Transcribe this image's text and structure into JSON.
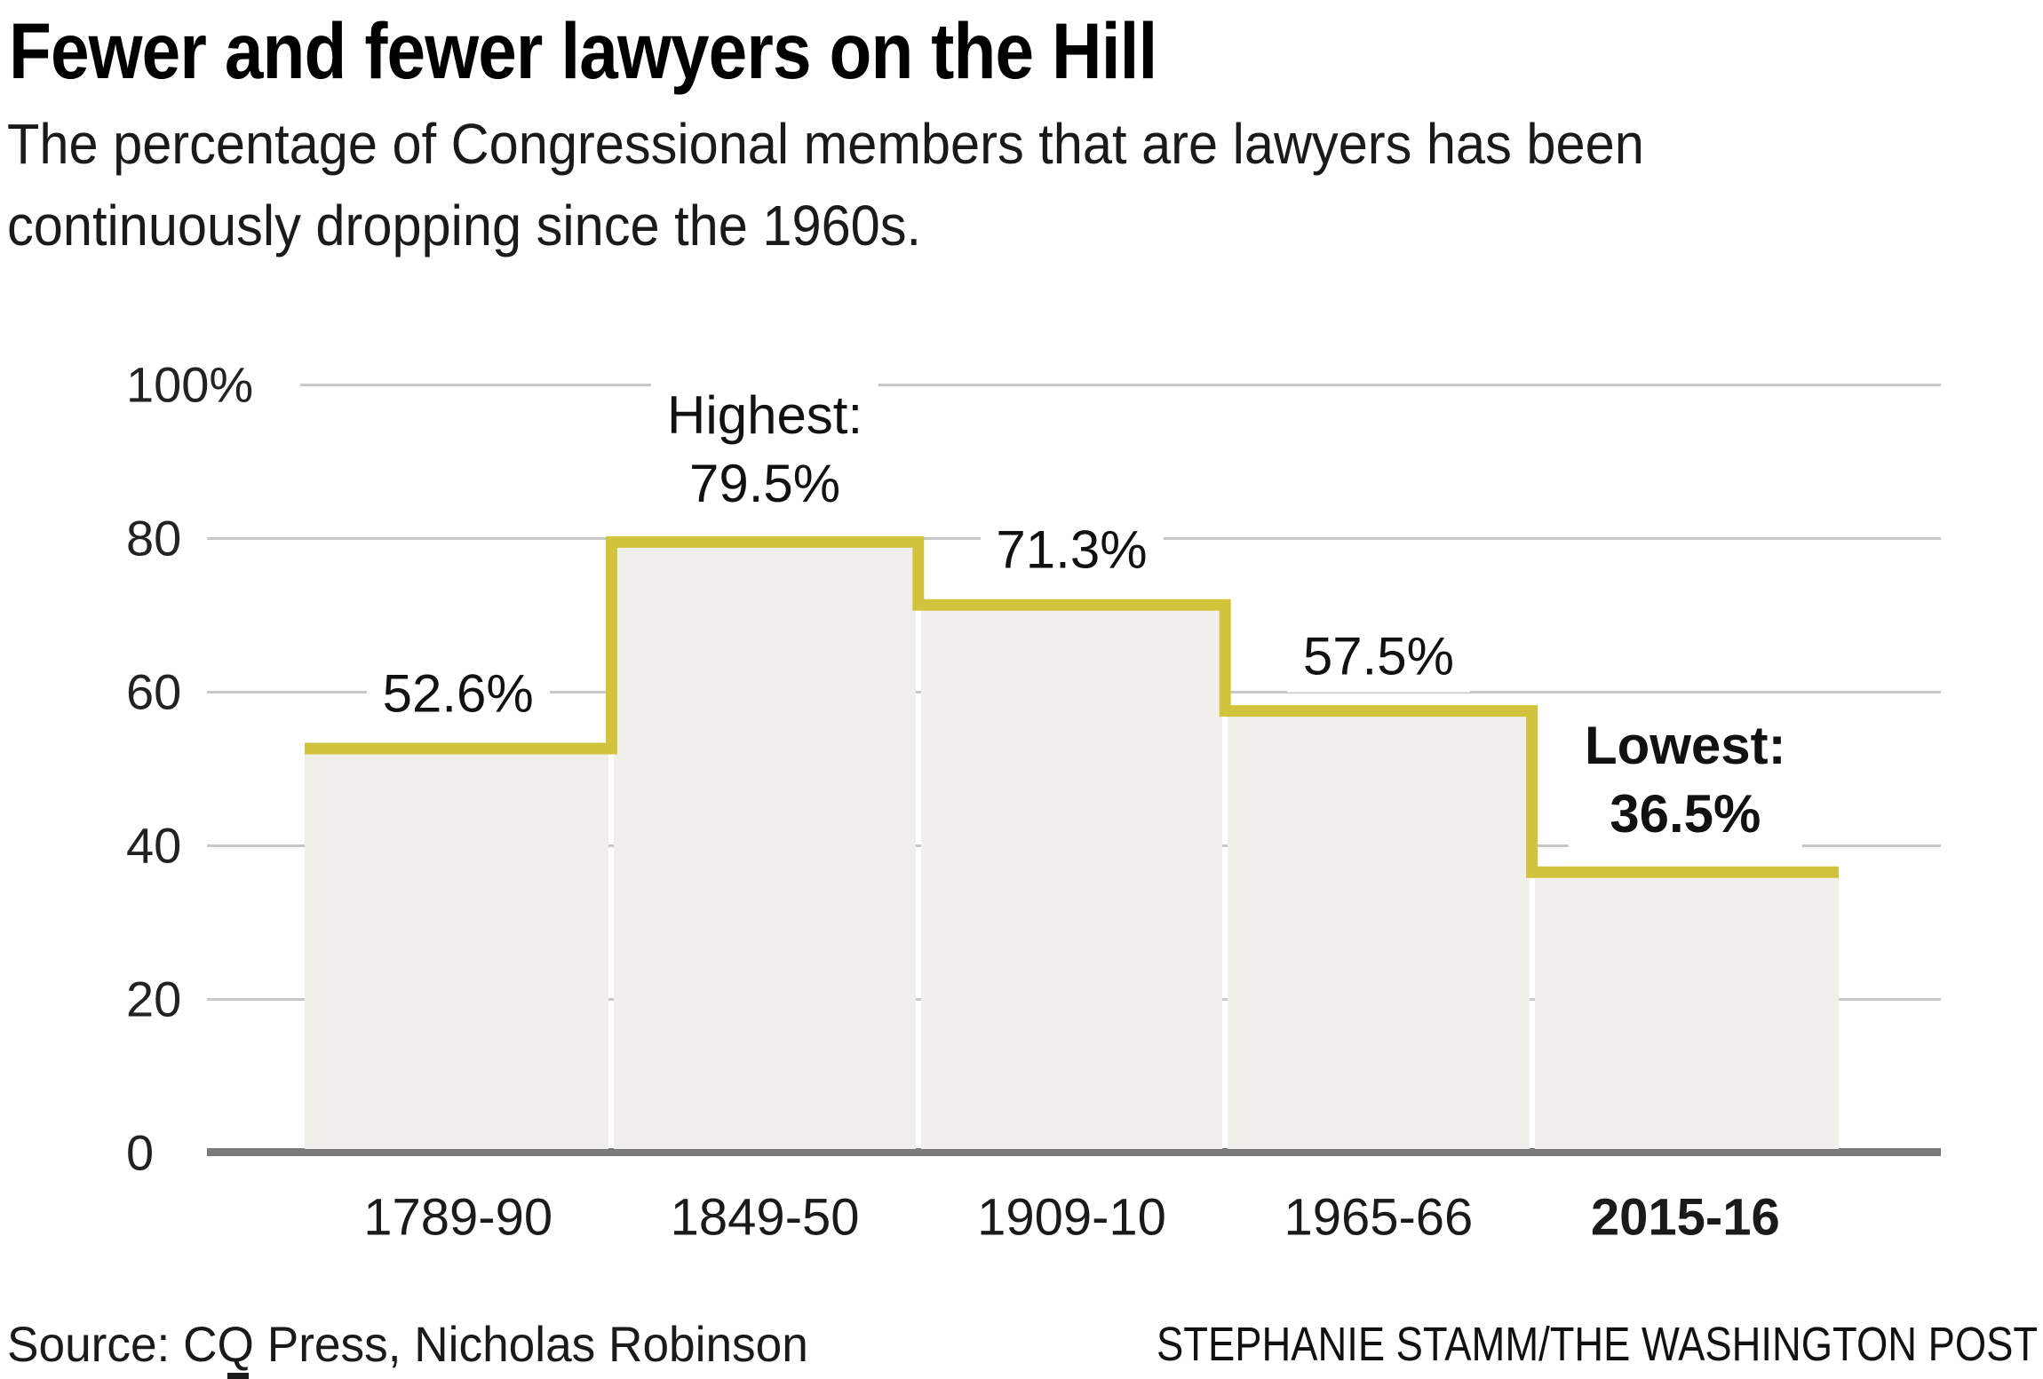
{
  "header": {
    "title": "Fewer and fewer lawyers on the Hill",
    "subtitle_line1": "The percentage of Congressional members that are lawyers has been",
    "subtitle_line2": "continuously dropping since the 1960s."
  },
  "chart_data": {
    "type": "bar",
    "title": "Fewer and fewer lawyers on the Hill",
    "subtitle": "The percentage of Congressional members that are lawyers has been continuously dropping since the 1960s.",
    "categories": [
      "1789-90",
      "1849-50",
      "1909-10",
      "1965-66",
      "2015-16"
    ],
    "values": [
      52.6,
      79.5,
      71.3,
      57.5,
      36.5
    ],
    "xlabel": "",
    "ylabel": "",
    "ylim": [
      0,
      100
    ],
    "grid": true,
    "legend_position": "none",
    "y_ticks": [
      {
        "label": "100%",
        "value": 100
      },
      {
        "label": "80",
        "value": 80
      },
      {
        "label": "60",
        "value": 60
      },
      {
        "label": "40",
        "value": 40
      },
      {
        "label": "20",
        "value": 20
      },
      {
        "label": "0",
        "value": 0
      }
    ],
    "bar_annotations": [
      {
        "lines": [
          "52.6%"
        ],
        "bold": false
      },
      {
        "lines": [
          "Highest:",
          "79.5%"
        ],
        "bold": false
      },
      {
        "lines": [
          "71.3%"
        ],
        "bold": false
      },
      {
        "lines": [
          "57.5%"
        ],
        "bold": false
      },
      {
        "lines": [
          "Lowest:",
          "36.5%"
        ],
        "bold": true
      }
    ],
    "bold_categories": [
      false,
      false,
      false,
      false,
      true
    ],
    "colors": {
      "step_line": "#d2c33d",
      "bar_fill": "#f0efec",
      "gridline": "#c8c8c8",
      "axis": "#7a7a7a",
      "text": "#1a1a1a"
    }
  },
  "footer": {
    "source": "Source: CQ Press, Nicholas Robinson",
    "credit": "STEPHANIE STAMM/THE WASHINGTON POST"
  }
}
